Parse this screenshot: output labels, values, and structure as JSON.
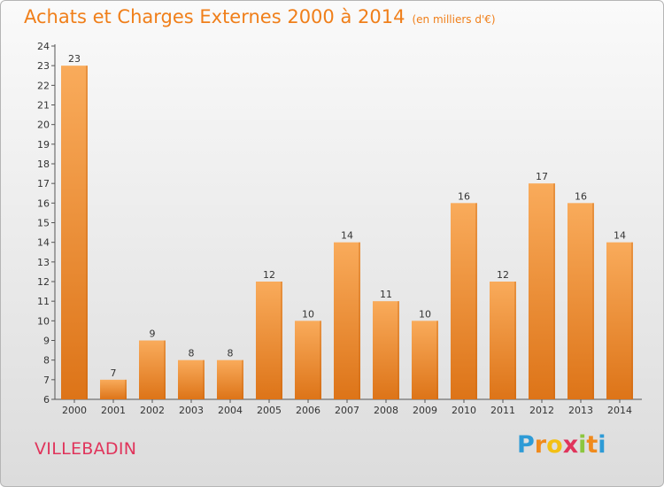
{
  "chart_data": {
    "type": "bar",
    "title": "Achats et Charges Externes 2000 à 2014",
    "subtitle": "(en milliers d'€)",
    "categories": [
      "2000",
      "2001",
      "2002",
      "2003",
      "2004",
      "2005",
      "2006",
      "2007",
      "2008",
      "2009",
      "2010",
      "2011",
      "2012",
      "2013",
      "2014"
    ],
    "values": [
      23,
      7,
      9,
      8,
      8,
      12,
      10,
      14,
      11,
      10,
      16,
      12,
      17,
      16,
      14
    ],
    "xlabel": "",
    "ylabel": "",
    "ylim": [
      6,
      24
    ],
    "yticks": [
      6,
      7,
      8,
      9,
      10,
      11,
      12,
      13,
      14,
      15,
      16,
      17,
      18,
      19,
      20,
      21,
      22,
      23,
      24
    ],
    "grid": false,
    "bar_color_light": "#f9ab5b",
    "bar_color_dark": "#dd7418"
  },
  "place_name": "VILLEBADIN",
  "logo": {
    "letters": [
      "P",
      "r",
      "o",
      "x",
      "i",
      "t",
      "i"
    ],
    "colors": [
      "#2e9bd6",
      "#f08a1c",
      "#f3c014",
      "#e0345b",
      "#8cc63f",
      "#f08a1c",
      "#2e9bd6"
    ]
  },
  "colors": {
    "title": "#f07f1a",
    "place": "#e0345b"
  }
}
